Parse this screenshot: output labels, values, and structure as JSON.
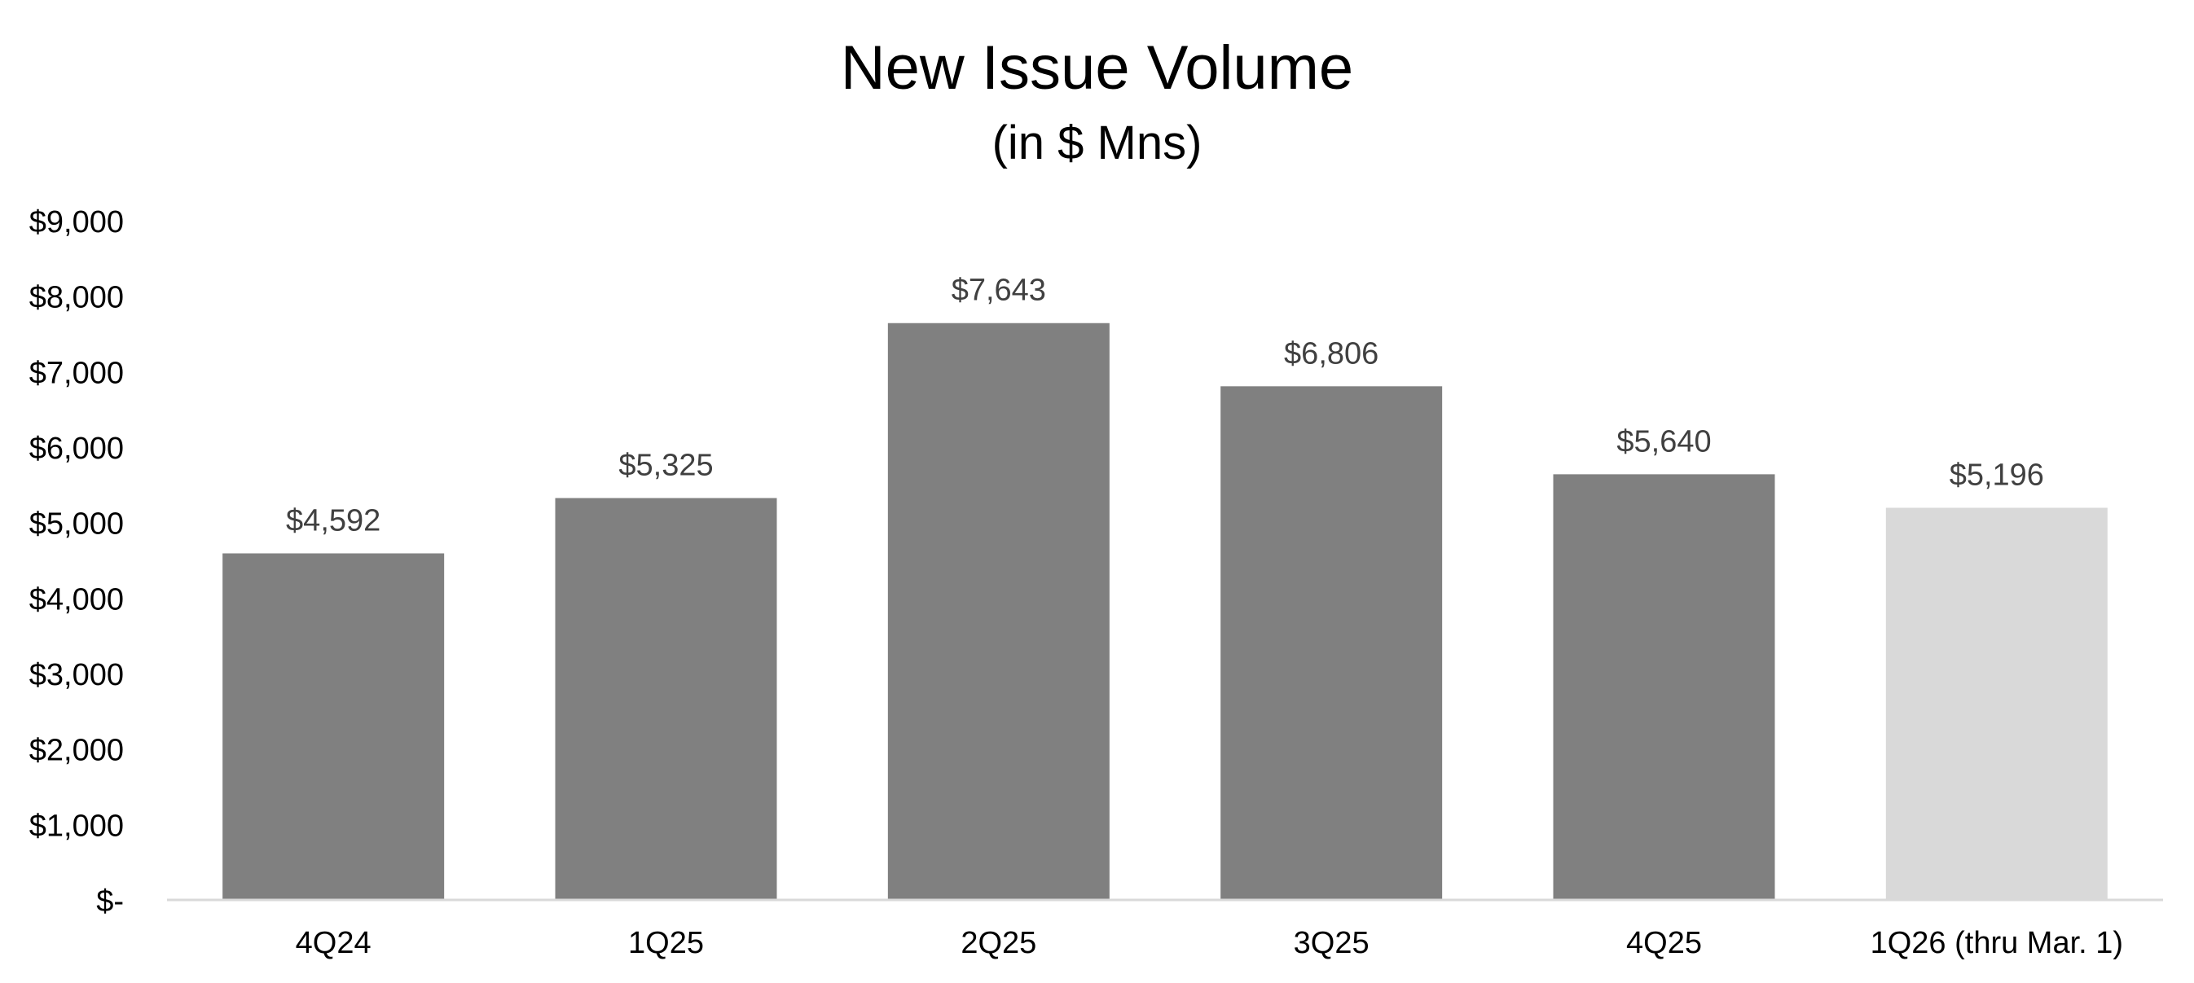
{
  "chart_data": {
    "type": "bar",
    "title": "New Issue Volume",
    "subtitle": "(in $ Mns)",
    "xlabel": "",
    "ylabel": "",
    "categories": [
      "4Q24",
      "1Q25",
      "2Q25",
      "3Q25",
      "4Q25",
      "1Q26 (thru Mar. 1)"
    ],
    "values": [
      4592,
      5325,
      7643,
      6806,
      5640,
      5196
    ],
    "data_labels": [
      "$4,592",
      "$5,325",
      "$7,643",
      "$6,806",
      "$5,640",
      "$5,196"
    ],
    "ylim": [
      0,
      9000
    ],
    "yticks": [
      0,
      1000,
      2000,
      3000,
      4000,
      5000,
      6000,
      7000,
      8000,
      9000
    ],
    "ytick_labels": [
      "$-",
      "$1,000",
      "$2,000",
      "$3,000",
      "$4,000",
      "$5,000",
      "$6,000",
      "$7,000",
      "$8,000",
      "$9,000"
    ],
    "grid": false,
    "legend": "none",
    "colors": {
      "bar": "#808080",
      "bar_highlight": "#d9d9d9",
      "axis_line": "#d9d9d9",
      "label_text": "#404040",
      "tick_text": "#000000"
    },
    "highlight_index": 5
  }
}
